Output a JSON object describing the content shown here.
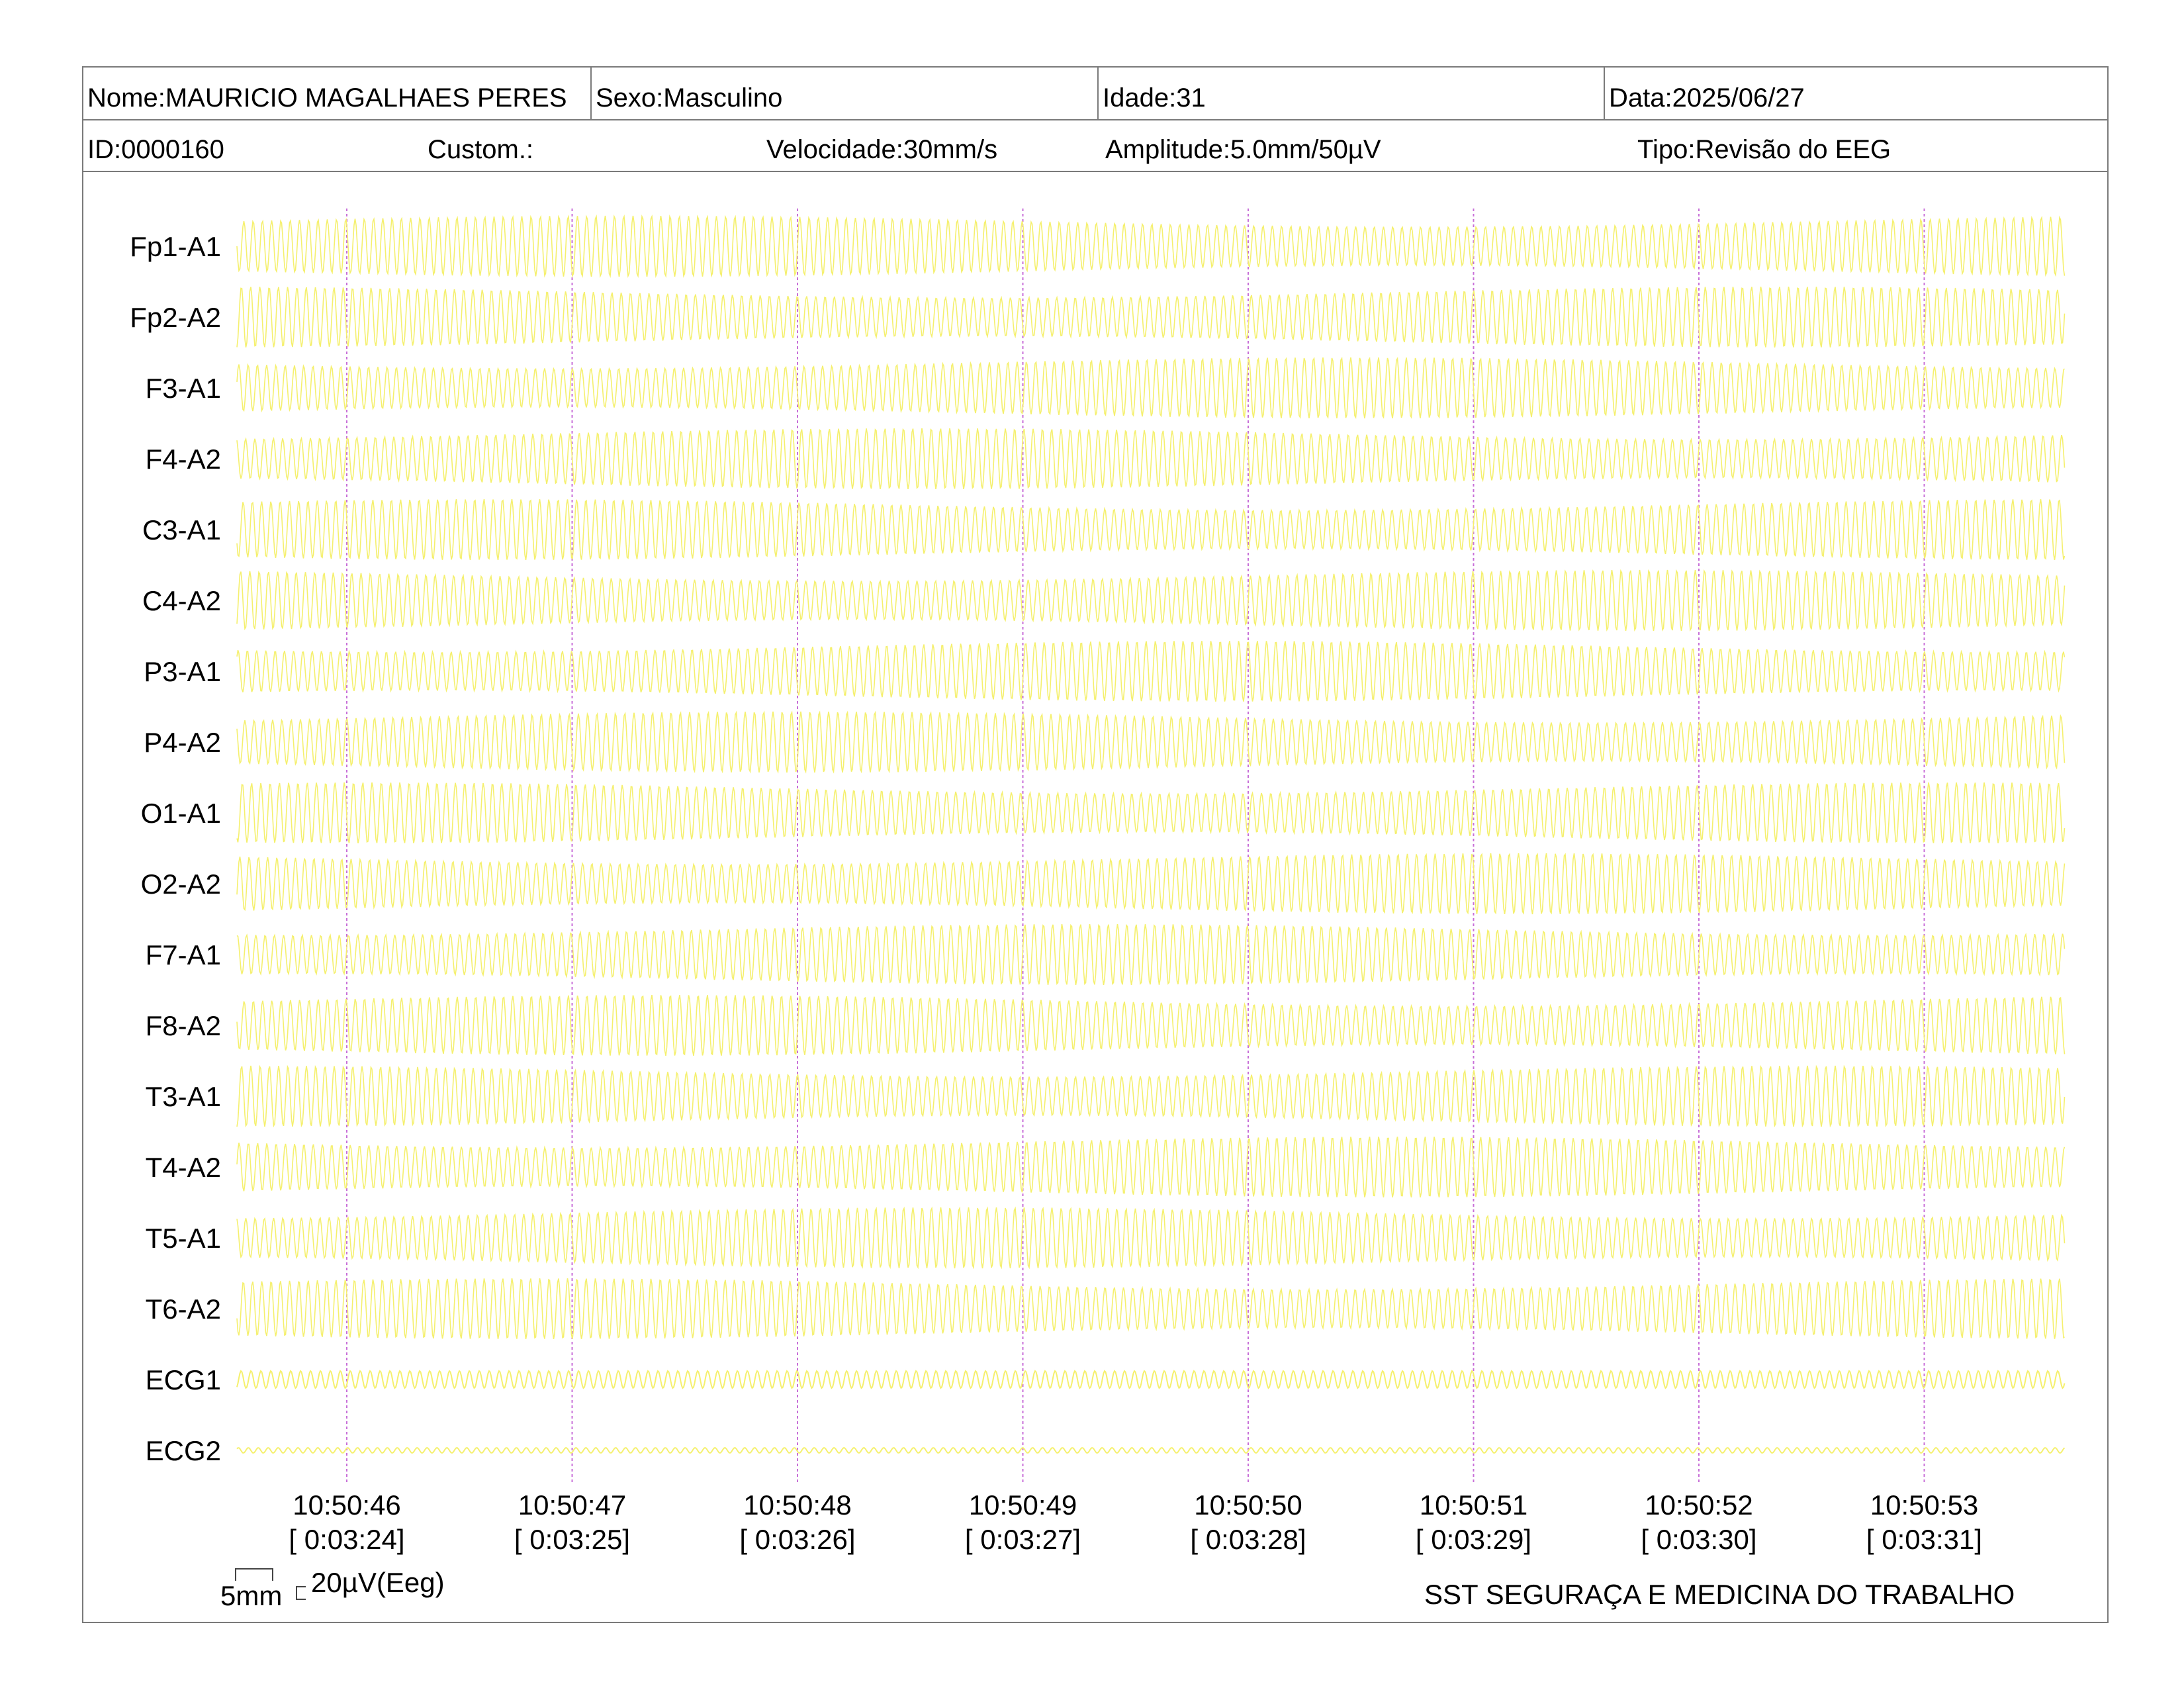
{
  "header": {
    "nome": "Nome:MAURICIO MAGALHAES PERES",
    "sexo": "Sexo:Masculino",
    "idade": "Idade:31",
    "data": "Data:2025/06/27",
    "id": "ID:0000160",
    "custom": "Custom.:",
    "velocidade": "Velocidade:30mm/s",
    "amplitude": "Amplitude:5.0mm/50µV",
    "tipo": "Tipo:Revisão do EEG"
  },
  "colors": {
    "trace": "#f5f06e",
    "marker": "#c86fd8",
    "frame": "#7a7a7a"
  },
  "chart_data": {
    "type": "line",
    "channels": [
      "Fp1-A1",
      "Fp2-A2",
      "F3-A1",
      "F4-A2",
      "C3-A1",
      "C4-A2",
      "P3-A1",
      "P4-A2",
      "O1-A1",
      "O2-A2",
      "F7-A1",
      "F8-A2",
      "T3-A1",
      "T4-A2",
      "T5-A1",
      "T6-A2",
      "ECG1",
      "ECG2"
    ],
    "time_ticks": [
      {
        "clock": "10:50:46",
        "elapsed": "[ 0:03:24]"
      },
      {
        "clock": "10:50:47",
        "elapsed": "[ 0:03:25]"
      },
      {
        "clock": "10:50:48",
        "elapsed": "[ 0:03:26]"
      },
      {
        "clock": "10:50:49",
        "elapsed": "[ 0:03:27]"
      },
      {
        "clock": "10:50:50",
        "elapsed": "[ 0:03:28]"
      },
      {
        "clock": "10:50:51",
        "elapsed": "[ 0:03:29]"
      },
      {
        "clock": "10:50:52",
        "elapsed": "[ 0:03:30]"
      },
      {
        "clock": "10:50:53",
        "elapsed": "[ 0:03:31]"
      }
    ],
    "scale_bar": {
      "x_label": "5mm",
      "y_label": "20µV(Eeg)"
    },
    "grid": false
  },
  "footer": {
    "company": "SST SEGURAÇA E MEDICINA DO TRABALHO"
  }
}
